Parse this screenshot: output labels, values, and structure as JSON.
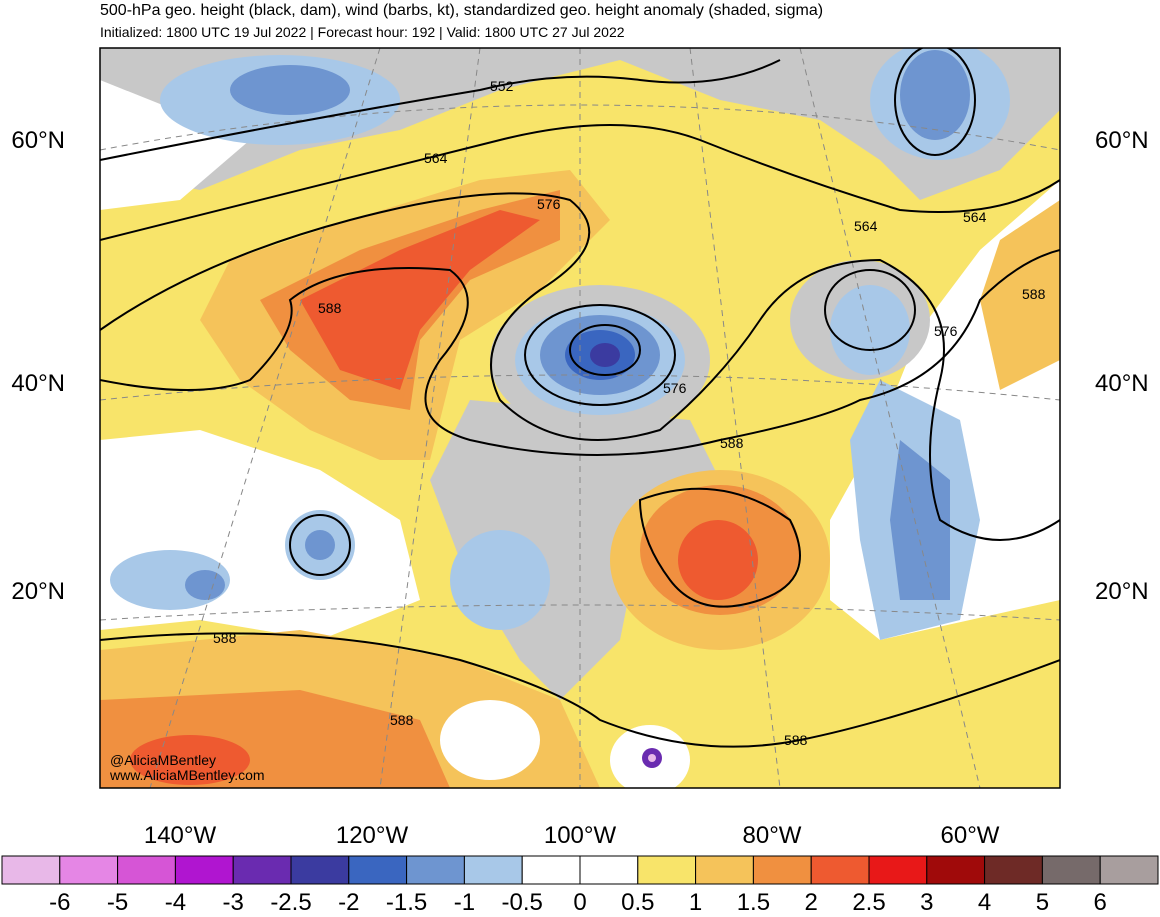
{
  "header": {
    "title": "500-hPa geo. height (black, dam), wind (barbs, kt), standardized geo. height anomaly (shaded, sigma)",
    "subtitle": "Initialized: 1800 UTC 19 Jul 2022 | Forecast hour: 192 | Valid: 1800 UTC 27 Jul 2022"
  },
  "map": {
    "lat_labels": [
      "60°N",
      "40°N",
      "20°N"
    ],
    "lon_labels": [
      "140°W",
      "120°W",
      "100°W",
      "80°W",
      "60°W"
    ],
    "contour_labels": [
      "552",
      "564",
      "576",
      "564",
      "564",
      "588",
      "588",
      "576",
      "576",
      "588",
      "588",
      "588",
      "588"
    ],
    "credits": [
      "@AliciaMBentley",
      "www.AliciaMBentley.com"
    ]
  },
  "colorbar": {
    "labels": [
      "-6",
      "-5",
      "-4",
      "-3",
      "-2.5",
      "-2",
      "-1.5",
      "-1",
      "-0.5",
      "0",
      "0.5",
      "1",
      "1.5",
      "2",
      "2.5",
      "3",
      "4",
      "5",
      "6"
    ],
    "colors": [
      "#e8b8e8",
      "#e586e5",
      "#d655d6",
      "#b015d0",
      "#6a2bb0",
      "#3b3ba0",
      "#3a66c0",
      "#6e95d0",
      "#a8c8e8",
      "#ffffff",
      "#ffffff",
      "#f8e46a",
      "#f5c35a",
      "#f09040",
      "#ee5a30",
      "#e81818",
      "#a00a0a",
      "#6e2a26",
      "#766a6a",
      "#a89e9e"
    ]
  }
}
